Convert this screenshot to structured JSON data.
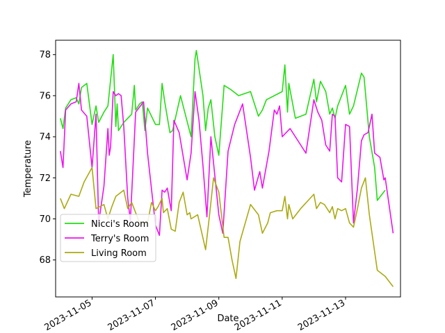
{
  "chart_data": {
    "type": "line",
    "title": "",
    "xlabel": "Date",
    "ylabel": "Temperature",
    "x_ticks": [
      "2023-11-05",
      "2023-11-07",
      "2023-11-09",
      "2023-11-11",
      "2023-11-13"
    ],
    "y_ticks": [
      "68",
      "70",
      "72",
      "74",
      "76",
      "78"
    ],
    "xlim": [
      "2023-11-03 20:24",
      "2023-11-14 17:36"
    ],
    "ylim": [
      66.2,
      78.7
    ],
    "grid": false,
    "legend": "lower-left",
    "series": [
      {
        "name": "Nicci's Room",
        "color": "#22dd11",
        "points": [
          [
            "2023-11-04 00:00",
            74.9
          ],
          [
            "2023-11-04 02:00",
            74.4
          ],
          [
            "2023-11-04 04:00",
            75.4
          ],
          [
            "2023-11-04 08:00",
            75.8
          ],
          [
            "2023-11-04 12:00",
            75.9
          ],
          [
            "2023-11-04 14:00",
            75.6
          ],
          [
            "2023-11-04 16:00",
            76.4
          ],
          [
            "2023-11-04 20:00",
            76.6
          ],
          [
            "2023-11-05 00:00",
            74.6
          ],
          [
            "2023-11-05 03:00",
            75.5
          ],
          [
            "2023-11-05 05:00",
            74.7
          ],
          [
            "2023-11-05 09:00",
            75.2
          ],
          [
            "2023-11-05 12:00",
            75.5
          ],
          [
            "2023-11-05 16:00",
            78.0
          ],
          [
            "2023-11-05 18:00",
            74.5
          ],
          [
            "2023-11-05 19:00",
            75.6
          ],
          [
            "2023-11-05 20:00",
            74.3
          ],
          [
            "2023-11-06 00:00",
            74.7
          ],
          [
            "2023-11-06 06:00",
            75.1
          ],
          [
            "2023-11-06 08:00",
            76.5
          ],
          [
            "2023-11-06 09:00",
            75.3
          ],
          [
            "2023-11-06 12:00",
            75.6
          ],
          [
            "2023-11-06 14:00",
            75.7
          ],
          [
            "2023-11-06 16:00",
            74.3
          ],
          [
            "2023-11-06 18:00",
            75.4
          ],
          [
            "2023-11-07 00:00",
            74.6
          ],
          [
            "2023-11-07 03:00",
            74.6
          ],
          [
            "2023-11-07 05:00",
            76.6
          ],
          [
            "2023-11-07 07:00",
            75.7
          ],
          [
            "2023-11-07 11:00",
            74.2
          ],
          [
            "2023-11-07 13:00",
            74.3
          ],
          [
            "2023-11-07 19:00",
            76.0
          ],
          [
            "2023-11-08 03:00",
            74.0
          ],
          [
            "2023-11-08 06:00",
            77.8
          ],
          [
            "2023-11-08 07:00",
            78.2
          ],
          [
            "2023-11-08 12:00",
            76.0
          ],
          [
            "2023-11-08 14:00",
            74.3
          ],
          [
            "2023-11-08 16:00",
            75.4
          ],
          [
            "2023-11-08 18:00",
            75.8
          ],
          [
            "2023-11-08 21:00",
            74.0
          ],
          [
            "2023-11-09 00:00",
            73.1
          ],
          [
            "2023-11-09 04:00",
            76.5
          ],
          [
            "2023-11-09 09:00",
            76.3
          ],
          [
            "2023-11-09 15:00",
            76.0
          ],
          [
            "2023-11-10 00:00",
            76.2
          ],
          [
            "2023-11-10 06:00",
            75.0
          ],
          [
            "2023-11-10 09:00",
            75.3
          ],
          [
            "2023-11-10 12:00",
            75.8
          ],
          [
            "2023-11-11 00:00",
            76.2
          ],
          [
            "2023-11-11 02:00",
            77.5
          ],
          [
            "2023-11-11 04:00",
            75.2
          ],
          [
            "2023-11-11 05:00",
            76.6
          ],
          [
            "2023-11-11 10:00",
            74.9
          ],
          [
            "2023-11-11 18:00",
            75.1
          ],
          [
            "2023-11-12 00:00",
            76.8
          ],
          [
            "2023-11-12 02:00",
            75.7
          ],
          [
            "2023-11-12 05:00",
            76.7
          ],
          [
            "2023-11-12 09:00",
            76.2
          ],
          [
            "2023-11-12 12:00",
            75.1
          ],
          [
            "2023-11-12 14:00",
            75.4
          ],
          [
            "2023-11-12 16:00",
            74.9
          ],
          [
            "2023-11-12 18:00",
            75.5
          ],
          [
            "2023-11-13 00:00",
            76.5
          ],
          [
            "2023-11-13 03:00",
            75.1
          ],
          [
            "2023-11-13 06:00",
            75.5
          ],
          [
            "2023-11-13 12:00",
            77.1
          ],
          [
            "2023-11-13 14:00",
            76.9
          ],
          [
            "2023-11-13 18:00",
            74.0
          ],
          [
            "2023-11-13 22:00",
            72.5
          ],
          [
            "2023-11-14 00:00",
            70.9
          ],
          [
            "2023-11-14 06:00",
            71.4
          ]
        ]
      },
      {
        "name": "Terry's Room",
        "color": "#ee11ee",
        "points": [
          [
            "2023-11-04 00:00",
            73.3
          ],
          [
            "2023-11-04 02:00",
            72.5
          ],
          [
            "2023-11-04 04:00",
            75.3
          ],
          [
            "2023-11-04 08:00",
            75.6
          ],
          [
            "2023-11-04 12:00",
            75.7
          ],
          [
            "2023-11-04 14:00",
            76.6
          ],
          [
            "2023-11-04 16:00",
            75.3
          ],
          [
            "2023-11-04 20:00",
            75.0
          ],
          [
            "2023-11-05 00:00",
            72.5
          ],
          [
            "2023-11-05 03:00",
            75.1
          ],
          [
            "2023-11-05 05:00",
            69.8
          ],
          [
            "2023-11-05 09:00",
            71.6
          ],
          [
            "2023-11-05 12:00",
            74.4
          ],
          [
            "2023-11-05 13:00",
            73.1
          ],
          [
            "2023-11-05 14:00",
            73.5
          ],
          [
            "2023-11-05 16:00",
            76.2
          ],
          [
            "2023-11-05 18:00",
            76.0
          ],
          [
            "2023-11-05 20:00",
            76.1
          ],
          [
            "2023-11-05 22:00",
            76.0
          ],
          [
            "2023-11-06 00:00",
            74.5
          ],
          [
            "2023-11-06 03:00",
            71.0
          ],
          [
            "2023-11-06 05:00",
            69.9
          ],
          [
            "2023-11-06 09:00",
            75.2
          ],
          [
            "2023-11-06 15:00",
            75.7
          ],
          [
            "2023-11-06 18:00",
            73.2
          ],
          [
            "2023-11-07 00:00",
            69.7
          ],
          [
            "2023-11-07 03:00",
            69.2
          ],
          [
            "2023-11-07 05:00",
            71.4
          ],
          [
            "2023-11-07 07:00",
            71.3
          ],
          [
            "2023-11-07 09:00",
            71.5
          ],
          [
            "2023-11-07 12:00",
            70.4
          ],
          [
            "2023-11-07 14:00",
            74.8
          ],
          [
            "2023-11-07 18:00",
            74.2
          ],
          [
            "2023-11-08 00:00",
            71.9
          ],
          [
            "2023-11-08 03:00",
            73.2
          ],
          [
            "2023-11-08 06:00",
            76.2
          ],
          [
            "2023-11-08 09:00",
            74.8
          ],
          [
            "2023-11-08 12:00",
            72.6
          ],
          [
            "2023-11-08 15:00",
            70.1
          ],
          [
            "2023-11-08 18:00",
            74.0
          ],
          [
            "2023-11-09 00:00",
            70.2
          ],
          [
            "2023-11-09 03:00",
            69.3
          ],
          [
            "2023-11-09 07:00",
            73.3
          ],
          [
            "2023-11-09 12:00",
            74.6
          ],
          [
            "2023-11-09 18:00",
            75.6
          ],
          [
            "2023-11-10 00:00",
            73.0
          ],
          [
            "2023-11-10 03:00",
            71.4
          ],
          [
            "2023-11-10 07:00",
            72.3
          ],
          [
            "2023-11-10 09:00",
            71.5
          ],
          [
            "2023-11-10 14:00",
            73.3
          ],
          [
            "2023-11-10 18:00",
            75.3
          ],
          [
            "2023-11-10 20:00",
            75.1
          ],
          [
            "2023-11-10 22:00",
            75.5
          ],
          [
            "2023-11-11 00:00",
            74.0
          ],
          [
            "2023-11-11 03:00",
            74.2
          ],
          [
            "2023-11-11 06:00",
            74.4
          ],
          [
            "2023-11-11 12:00",
            73.8
          ],
          [
            "2023-11-11 18:00",
            73.2
          ],
          [
            "2023-11-12 00:00",
            75.8
          ],
          [
            "2023-11-12 03:00",
            75.2
          ],
          [
            "2023-11-12 06:00",
            74.8
          ],
          [
            "2023-11-12 09:00",
            73.6
          ],
          [
            "2023-11-12 12:00",
            73.3
          ],
          [
            "2023-11-12 14:00",
            75.1
          ],
          [
            "2023-11-12 16:00",
            75.0
          ],
          [
            "2023-11-12 18:00",
            72.0
          ],
          [
            "2023-11-12 21:00",
            71.8
          ],
          [
            "2023-11-13 00:00",
            74.6
          ],
          [
            "2023-11-13 03:00",
            74.5
          ],
          [
            "2023-11-13 06:00",
            69.8
          ],
          [
            "2023-11-13 09:00",
            71.5
          ],
          [
            "2023-11-13 12:00",
            73.8
          ],
          [
            "2023-11-13 14:00",
            74.1
          ],
          [
            "2023-11-13 17:00",
            74.2
          ],
          [
            "2023-11-13 20:00",
            75.1
          ],
          [
            "2023-11-13 22:00",
            73.2
          ],
          [
            "2023-11-14 00:00",
            73.1
          ],
          [
            "2023-11-14 02:00",
            73.0
          ],
          [
            "2023-11-14 05:00",
            71.9
          ],
          [
            "2023-11-14 06:00",
            72.0
          ],
          [
            "2023-11-14 12:00",
            69.3
          ]
        ]
      },
      {
        "name": "Living Room",
        "color": "#aaaa11",
        "points": [
          [
            "2023-11-04 00:00",
            71.0
          ],
          [
            "2023-11-04 03:00",
            70.5
          ],
          [
            "2023-11-04 08:00",
            71.2
          ],
          [
            "2023-11-04 14:00",
            71.1
          ],
          [
            "2023-11-04 18:00",
            71.8
          ],
          [
            "2023-11-05 00:00",
            72.5
          ],
          [
            "2023-11-05 03:00",
            70.5
          ],
          [
            "2023-11-05 09:00",
            70.7
          ],
          [
            "2023-11-05 12:00",
            70.0
          ],
          [
            "2023-11-05 15:00",
            70.6
          ],
          [
            "2023-11-05 18:00",
            71.1
          ],
          [
            "2023-11-06 00:00",
            71.4
          ],
          [
            "2023-11-06 03:00",
            70.5
          ],
          [
            "2023-11-06 06:00",
            70.8
          ],
          [
            "2023-11-06 12:00",
            69.8
          ],
          [
            "2023-11-06 18:00",
            69.8
          ],
          [
            "2023-11-06 21:00",
            70.8
          ],
          [
            "2023-11-07 00:00",
            70.4
          ],
          [
            "2023-11-07 02:00",
            70.6
          ],
          [
            "2023-11-07 05:00",
            71.0
          ],
          [
            "2023-11-07 06:00",
            70.3
          ],
          [
            "2023-11-07 09:00",
            70.5
          ],
          [
            "2023-11-07 12:00",
            69.5
          ],
          [
            "2023-11-07 15:00",
            69.4
          ],
          [
            "2023-11-07 18:00",
            70.8
          ],
          [
            "2023-11-07 21:00",
            71.3
          ],
          [
            "2023-11-08 00:00",
            70.2
          ],
          [
            "2023-11-08 02:00",
            70.3
          ],
          [
            "2023-11-08 03:00",
            70.0
          ],
          [
            "2023-11-08 08:00",
            70.2
          ],
          [
            "2023-11-08 14:00",
            68.5
          ],
          [
            "2023-11-08 17:00",
            70.2
          ],
          [
            "2023-11-08 20:00",
            72.0
          ],
          [
            "2023-11-09 00:00",
            71.3
          ],
          [
            "2023-11-09 04:00",
            69.1
          ],
          [
            "2023-11-09 07:00",
            69.1
          ],
          [
            "2023-11-09 10:00",
            68.0
          ],
          [
            "2023-11-09 13:00",
            67.1
          ],
          [
            "2023-11-09 16:00",
            68.9
          ],
          [
            "2023-11-10 00:00",
            70.7
          ],
          [
            "2023-11-10 06:00",
            70.2
          ],
          [
            "2023-11-10 09:00",
            69.3
          ],
          [
            "2023-11-10 13:00",
            69.8
          ],
          [
            "2023-11-10 15:00",
            70.3
          ],
          [
            "2023-11-10 20:00",
            70.4
          ],
          [
            "2023-11-11 00:00",
            70.4
          ],
          [
            "2023-11-11 02:00",
            71.1
          ],
          [
            "2023-11-11 04:00",
            70.0
          ],
          [
            "2023-11-11 05:00",
            70.7
          ],
          [
            "2023-11-11 08:00",
            70.0
          ],
          [
            "2023-11-11 14:00",
            70.5
          ],
          [
            "2023-11-12 00:00",
            71.2
          ],
          [
            "2023-11-12 02:00",
            70.5
          ],
          [
            "2023-11-12 05:00",
            70.8
          ],
          [
            "2023-11-12 08:00",
            70.7
          ],
          [
            "2023-11-12 12:00",
            70.3
          ],
          [
            "2023-11-12 14:00",
            70.6
          ],
          [
            "2023-11-12 16:00",
            70.0
          ],
          [
            "2023-11-12 18:00",
            70.5
          ],
          [
            "2023-11-12 21:00",
            70.4
          ],
          [
            "2023-11-13 00:00",
            70.5
          ],
          [
            "2023-11-13 03:00",
            69.8
          ],
          [
            "2023-11-13 06:00",
            69.6
          ],
          [
            "2023-11-13 09:00",
            70.5
          ],
          [
            "2023-11-13 12:00",
            71.5
          ],
          [
            "2023-11-13 15:00",
            72.0
          ],
          [
            "2023-11-13 18:00",
            70.2
          ],
          [
            "2023-11-14 00:00",
            67.5
          ],
          [
            "2023-11-14 06:00",
            67.2
          ],
          [
            "2023-11-14 12:00",
            66.7
          ]
        ]
      }
    ]
  }
}
